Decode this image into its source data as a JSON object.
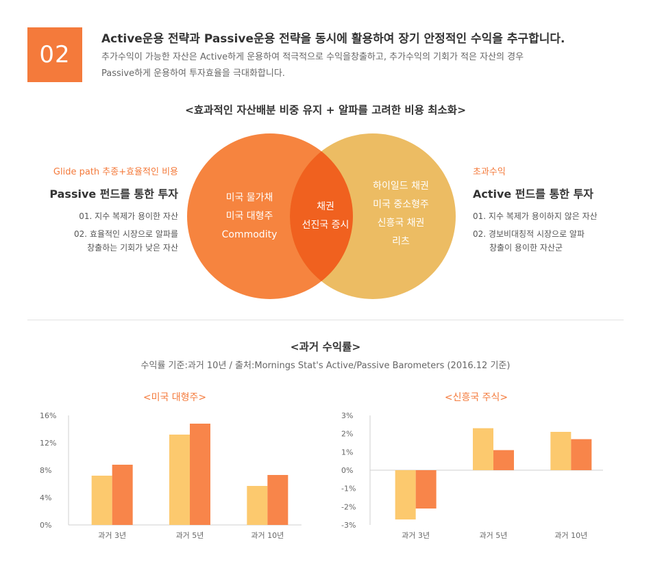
{
  "header": {
    "badge": "02",
    "title": "Active운용 전략과 Passive운용 전략을 동시에 활용하여 장기 안정적인 수익을 추구합니다.",
    "desc_line1": "추가수익이 가능한 자산은 Active하게 운용하여 적극적으로 수익을창출하고, 추가수익의 기회가 적은 자산의 경우",
    "desc_line2": "Passive하게 운용하여 투자효율을 극대화합니다."
  },
  "section1": {
    "title": "<효과적인 자산배분 비중 유지 + 알파를 고려한 비용 최소화>"
  },
  "left_panel": {
    "tag": "Glide path 추종+효율적인 비용",
    "name": "Passive 펀드를 통한 투자",
    "item1": "01. 지수 복제가 용이한 자산",
    "item2_line1": "02. 효율적인 시장으로 알파를",
    "item2_line2": "창출하는 기회가 낮은 자산"
  },
  "right_panel": {
    "tag": "초과수익",
    "name": "Active 펀드를 통한 투자",
    "item1": "01. 지수 복제가 용이하지 않은 자산",
    "item2_line1": "02. 경보비대칭적 시장으로 알파",
    "item2_line2": "창출이 용이한 자산군"
  },
  "venn": {
    "left": [
      "미국 물가채",
      "미국 대형주",
      "Commodity"
    ],
    "center": [
      "채권",
      "선진국 증시"
    ],
    "right": [
      "하이일드 채권",
      "미국 중소형주",
      "신흥국 채권",
      "리츠"
    ],
    "colors": {
      "left": "#f6843f",
      "right": "#ecbc63",
      "center": "#f0611f"
    }
  },
  "section2": {
    "title": "<과거 수익률>",
    "note": "수익률 기준:과거 10년 / 출처:Mornings Stat's Active/Passive Barometers (2016.12 기준)"
  },
  "colors": {
    "passive": "#fcc96e",
    "active": "#f8854a",
    "accent": "#f47a3b"
  },
  "chart_data": [
    {
      "type": "bar",
      "title": "<미국 대형주>",
      "categories": [
        "과거 3년",
        "과거 5년",
        "과거 10년"
      ],
      "series": [
        {
          "values": [
            7.2,
            13.2,
            5.7
          ]
        },
        {
          "values": [
            8.8,
            14.8,
            7.3
          ]
        }
      ],
      "ylim": [
        0,
        16
      ],
      "yticks": [
        0,
        4,
        8,
        12,
        16
      ],
      "ytick_labels": [
        "0%",
        "4%",
        "8%",
        "12%",
        "16%"
      ]
    },
    {
      "type": "bar",
      "title": "<신흥국 주식>",
      "categories": [
        "과거 3년",
        "과거 5년",
        "과거 10년"
      ],
      "series": [
        {
          "values": [
            -2.7,
            2.3,
            2.1
          ]
        },
        {
          "values": [
            -2.1,
            1.1,
            1.7
          ]
        }
      ],
      "ylim": [
        -3,
        3
      ],
      "yticks": [
        3,
        2,
        1,
        0,
        -1,
        -2,
        -3
      ],
      "ytick_labels": [
        "3%",
        "2%",
        "1%",
        "0%",
        "-1%",
        "-2%",
        "-3%"
      ]
    }
  ]
}
